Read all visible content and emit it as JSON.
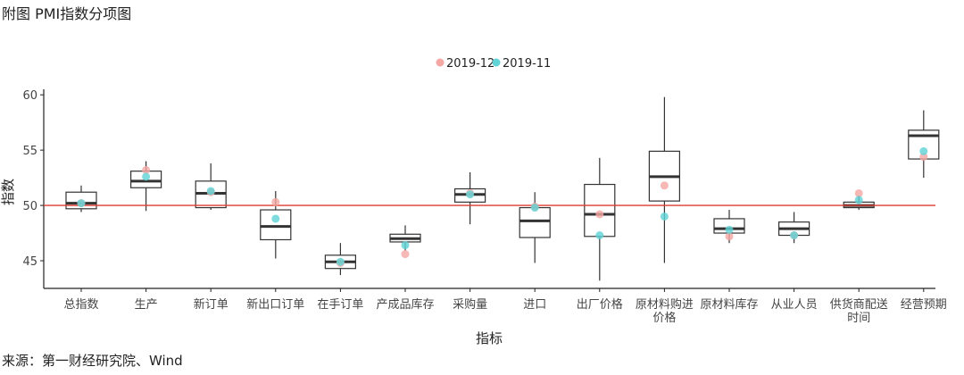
{
  "header": {
    "title": "附图 PMI指数分项图"
  },
  "footer": {
    "source": "来源：第一财经研究院、Wind"
  },
  "colors": {
    "dec": "#f4a7a3",
    "nov": "#5fd3d6",
    "refline": "#e03a2f",
    "box": "#333333"
  },
  "chart_data": {
    "type": "box",
    "xlabel": "指标",
    "ylabel": "指数",
    "ylim": [
      42.5,
      60.5
    ],
    "yticks": [
      45,
      50,
      55,
      60
    ],
    "reference_line": 50,
    "grid": false,
    "legend": {
      "placement": "top-center",
      "entries": [
        "2019-12",
        "2019-11"
      ]
    },
    "categories": [
      {
        "lines": [
          "总指数"
        ]
      },
      {
        "lines": [
          "生产"
        ]
      },
      {
        "lines": [
          "新订单"
        ]
      },
      {
        "lines": [
          "新出口订单"
        ]
      },
      {
        "lines": [
          "在手订单"
        ]
      },
      {
        "lines": [
          "产成品库存"
        ]
      },
      {
        "lines": [
          "采购量"
        ]
      },
      {
        "lines": [
          "进口"
        ]
      },
      {
        "lines": [
          "出厂价格"
        ]
      },
      {
        "lines": [
          "原材料购进",
          "价格"
        ]
      },
      {
        "lines": [
          "原材料库存"
        ]
      },
      {
        "lines": [
          "从业人员"
        ]
      },
      {
        "lines": [
          "供货商配送",
          "时间"
        ]
      },
      {
        "lines": [
          "经营预期"
        ]
      }
    ],
    "boxes": [
      {
        "min": 49.4,
        "q1": 49.7,
        "median": 50.2,
        "q3": 51.2,
        "max": 51.8
      },
      {
        "min": 49.5,
        "q1": 51.6,
        "median": 52.2,
        "q3": 53.1,
        "max": 54.0
      },
      {
        "min": 49.6,
        "q1": 49.8,
        "median": 51.1,
        "q3": 52.2,
        "max": 53.8
      },
      {
        "min": 45.2,
        "q1": 46.9,
        "median": 48.1,
        "q3": 49.6,
        "max": 51.3
      },
      {
        "min": 43.7,
        "q1": 44.3,
        "median": 44.9,
        "q3": 45.5,
        "max": 46.6
      },
      {
        "min": 45.9,
        "q1": 46.7,
        "median": 47.0,
        "q3": 47.4,
        "max": 48.2
      },
      {
        "min": 48.3,
        "q1": 50.3,
        "median": 51.0,
        "q3": 51.5,
        "max": 53.0
      },
      {
        "min": 44.8,
        "q1": 47.1,
        "median": 48.6,
        "q3": 49.8,
        "max": 51.2
      },
      {
        "min": 43.2,
        "q1": 47.2,
        "median": 49.2,
        "q3": 51.9,
        "max": 54.3
      },
      {
        "min": 44.8,
        "q1": 50.4,
        "median": 52.6,
        "q3": 54.9,
        "max": 59.8
      },
      {
        "min": 46.6,
        "q1": 47.5,
        "median": 47.9,
        "q3": 48.8,
        "max": 49.6
      },
      {
        "min": 46.6,
        "q1": 47.3,
        "median": 47.9,
        "q3": 48.5,
        "max": 49.4
      },
      {
        "min": 49.6,
        "q1": 49.8,
        "median": 50.0,
        "q3": 50.3,
        "max": 50.9
      },
      {
        "min": 52.5,
        "q1": 54.2,
        "median": 56.3,
        "q3": 56.8,
        "max": 58.6
      }
    ],
    "series": [
      {
        "name": "2019-12",
        "values": [
          50.2,
          53.2,
          51.2,
          50.3,
          44.8,
          45.6,
          51.1,
          49.9,
          49.2,
          51.8,
          47.2,
          47.3,
          51.1,
          54.4
        ]
      },
      {
        "name": "2019-11",
        "values": [
          50.2,
          52.6,
          51.3,
          48.8,
          44.9,
          46.4,
          51.0,
          49.8,
          47.3,
          49.0,
          47.8,
          47.3,
          50.5,
          54.9
        ]
      }
    ]
  }
}
